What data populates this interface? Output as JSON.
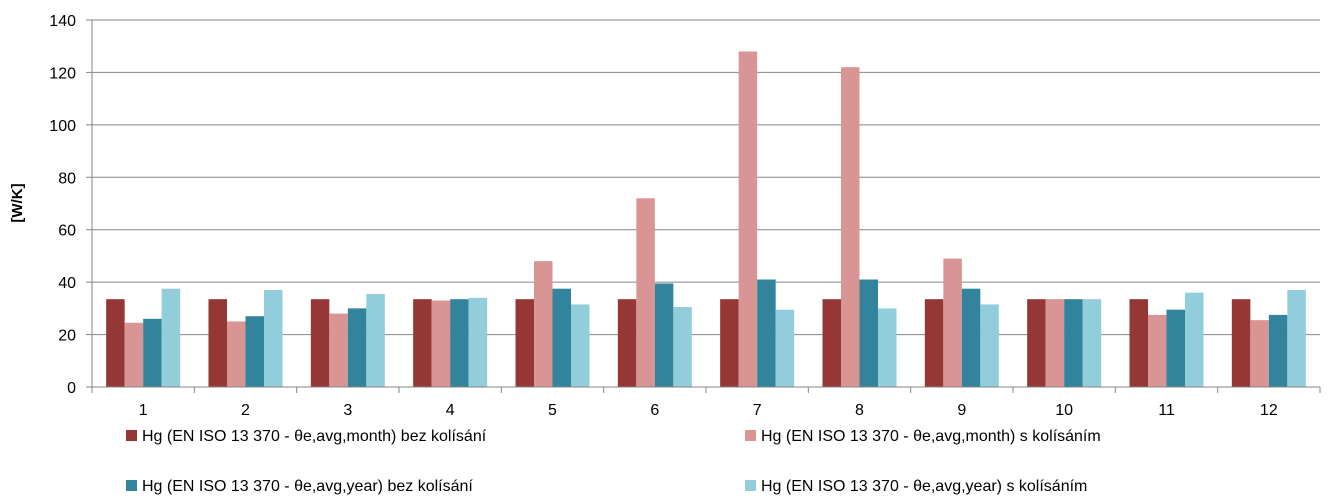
{
  "chart_data": {
    "type": "bar",
    "title": "",
    "xlabel": "",
    "ylabel": "[W/K]",
    "ylim": [
      0,
      140
    ],
    "yticks": [
      0,
      20,
      40,
      60,
      80,
      100,
      120,
      140
    ],
    "grid": true,
    "legend_position": "bottom",
    "categories": [
      "1",
      "2",
      "3",
      "4",
      "5",
      "6",
      "7",
      "8",
      "9",
      "10",
      "11",
      "12"
    ],
    "series": [
      {
        "name": "Hg (EN ISO 13 370 - θe,avg,month) bez kolísání",
        "color": "#953735",
        "values": [
          33.5,
          33.5,
          33.5,
          33.5,
          33.5,
          33.5,
          33.5,
          33.5,
          33.5,
          33.5,
          33.5,
          33.5
        ]
      },
      {
        "name": "Hg (EN ISO 13 370 - θe,avg,month) s kolísáním",
        "color": "#D99594",
        "values": [
          24.5,
          25,
          28,
          33,
          48,
          72,
          128,
          122,
          49,
          33.5,
          27.5,
          25.5
        ]
      },
      {
        "name": "Hg (EN ISO 13 370 - θe,avg,year) bez kolísání",
        "color": "#31849B",
        "values": [
          26,
          27,
          30,
          33.5,
          37.5,
          39.5,
          41,
          41,
          37.5,
          33.5,
          29.5,
          27.5
        ]
      },
      {
        "name": "Hg (EN ISO 13 370 - θe,avg,year) s kolísáním",
        "color": "#92CDDC",
        "values": [
          37.5,
          37,
          35.5,
          34,
          31.5,
          30.5,
          29.5,
          30,
          31.5,
          33.5,
          36,
          37
        ]
      }
    ]
  }
}
